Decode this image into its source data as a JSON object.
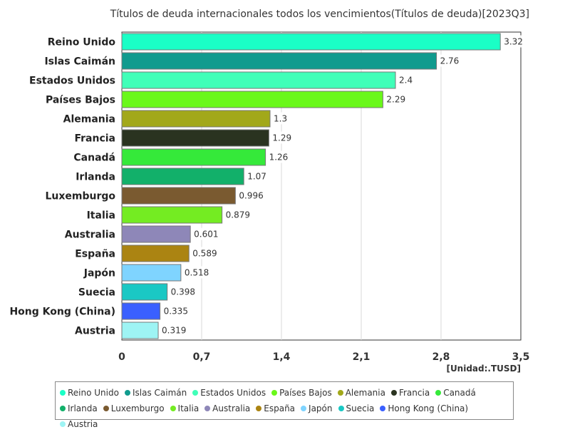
{
  "chart_data": {
    "type": "bar",
    "orientation": "horizontal",
    "title": "Títulos de deuda internacionales todos los vencimientos(Títulos de deuda)[2023Q3]",
    "unit_label": "[Unidad:.TUSD]",
    "categories": [
      "Reino Unido",
      "Islas Caimán",
      "Estados Unidos",
      "Países Bajos",
      "Alemania",
      "Francia",
      "Canadá",
      "Irlanda",
      "Luxemburgo",
      "Italia",
      "Australia",
      "España",
      "Japón",
      "Suecia",
      "Hong Kong (China)",
      "Austria"
    ],
    "values": [
      3.32,
      2.76,
      2.4,
      2.29,
      1.3,
      1.29,
      1.26,
      1.07,
      0.996,
      0.879,
      0.601,
      0.589,
      0.518,
      0.398,
      0.335,
      0.319
    ],
    "value_labels": [
      "3.32",
      "2.76",
      "2.4",
      "2.29",
      "1.3",
      "1.29",
      "1.26",
      "1.07",
      "0.996",
      "0.879",
      "0.601",
      "0.589",
      "0.518",
      "0.398",
      "0.335",
      "0.319"
    ],
    "colors": [
      "#1affc6",
      "#119b8e",
      "#40ffb8",
      "#6af81a",
      "#a2a81a",
      "#2a3320",
      "#35e93a",
      "#12b06a",
      "#7a5a30",
      "#74ec22",
      "#8e87b8",
      "#ab8412",
      "#7fd4ff",
      "#1ac8c4",
      "#3a60ff",
      "#9ef4f4"
    ],
    "xlim": [
      0,
      3.5
    ],
    "xticks": [
      "0",
      "0,7",
      "1,4",
      "2,1",
      "2,8",
      "3,5"
    ],
    "xtick_values": [
      0,
      0.7,
      1.4,
      2.1,
      2.8,
      3.5
    ],
    "grid": true,
    "legend_position": "bottom"
  }
}
